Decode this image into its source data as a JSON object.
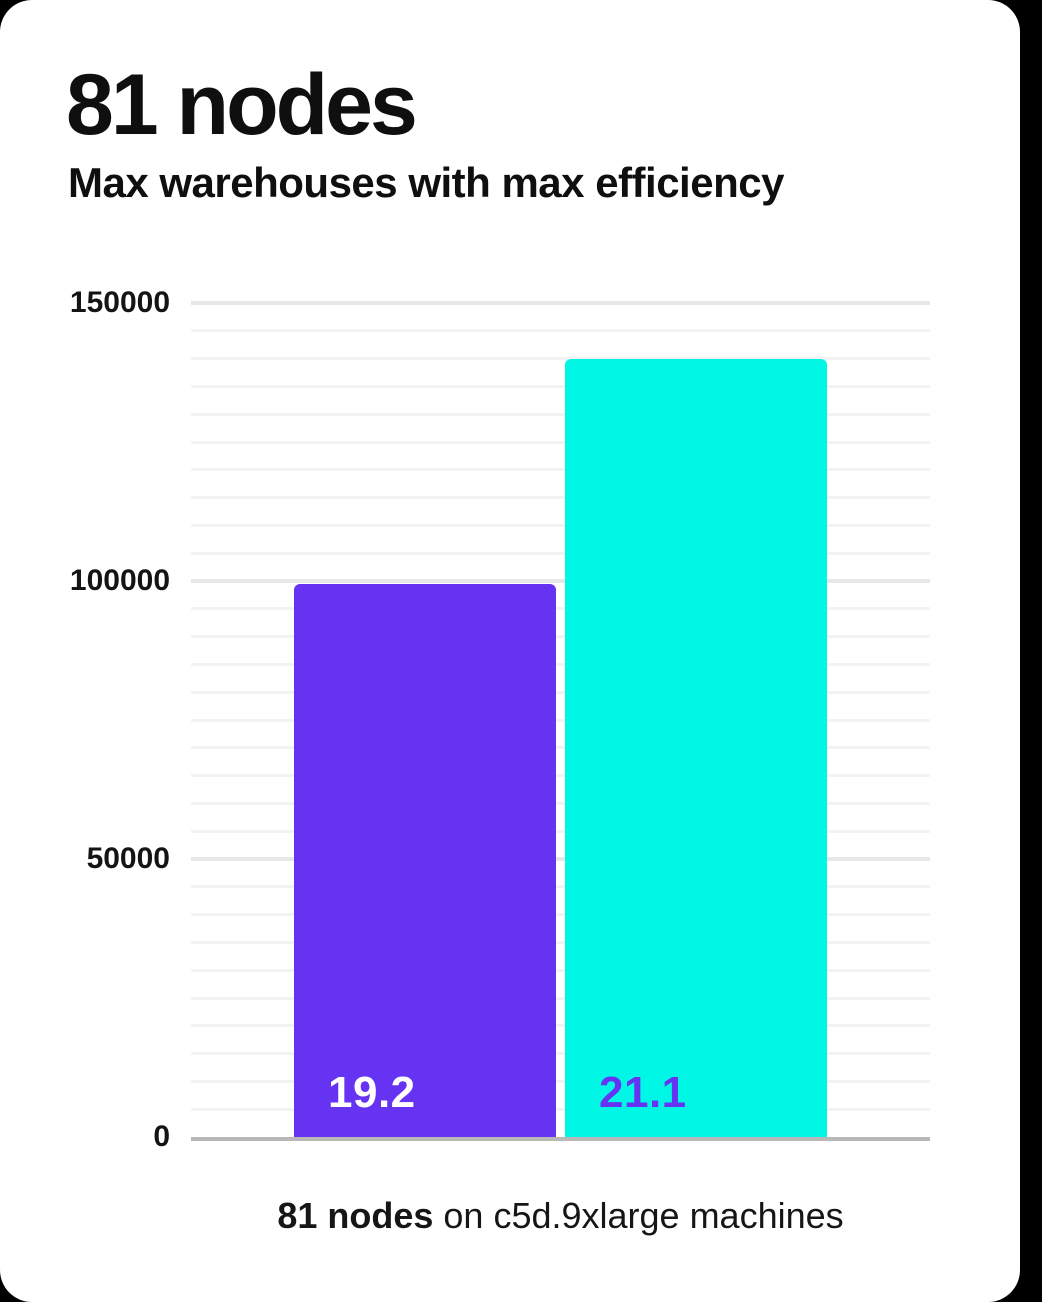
{
  "header": {
    "title": "81 nodes",
    "subtitle": "Max warehouses with max efficiency"
  },
  "chart_data": {
    "type": "bar",
    "title": "81 nodes",
    "subtitle": "Max warehouses with max efficiency",
    "xlabel": "",
    "ylabel": "",
    "ylim": [
      0,
      150000
    ],
    "yticks": [
      0,
      50000,
      100000,
      150000
    ],
    "minor_grid_step": 5000,
    "grid": true,
    "legend_position": "none",
    "bars": [
      {
        "name": "warehouses-19.2",
        "data_label": "19.2",
        "value": 99500,
        "color": "#6633f2",
        "label_color": "#ffffff"
      },
      {
        "name": "warehouses-21.1",
        "data_label": "21.1",
        "value": 140000,
        "color": "#00f7e6",
        "label_color": "#6633f2"
      }
    ],
    "caption": "81 nodes on c5d.9xlarge machines"
  },
  "caption": {
    "bold_text": "81 nodes",
    "regular_text": " on c5d.9xlarge machines"
  },
  "colors": {
    "page_background": "#000000",
    "card_background": "#ffffff",
    "accent_purple": "#6633f2",
    "accent_cyan": "#00f7e6",
    "grid_major": "#e7e7e7",
    "grid_minor": "#f3f3f3",
    "axis_line": "#b8b8b8",
    "text": "#0f0f0f"
  }
}
